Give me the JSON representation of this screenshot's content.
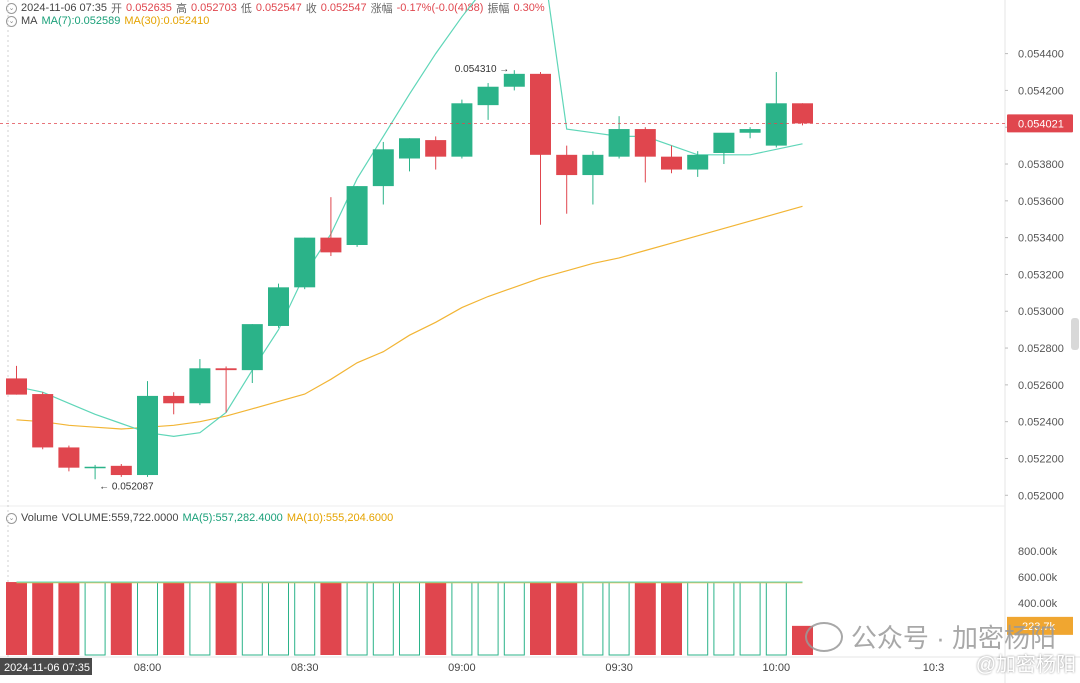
{
  "header": {
    "datetime": "2024-11-06 07:35",
    "open_label": "开",
    "open": "0.052635",
    "high_label": "高",
    "high": "0.052703",
    "low_label": "低",
    "low": "0.052547",
    "close_label": "收",
    "close": "0.052547",
    "change_label": "涨幅",
    "change": "-0.17%(-0.0(4)88)",
    "amplitude_label": "振幅",
    "amplitude": "0.30%"
  },
  "ma_legend": {
    "label": "MA",
    "ma7": "MA(7):0.052589",
    "ma30": "MA(30):0.052410"
  },
  "volume_legend": {
    "label": "Volume",
    "volume": "VOLUME:559,722.0000",
    "ma5": "MA(5):557,282.4000",
    "ma10": "MA(10):555,204.6000"
  },
  "watermark": {
    "text": "公众号 · 加密杨阳",
    "handle": "@加密杨阳"
  },
  "colors": {
    "up": "#2bb389",
    "down": "#e0464e",
    "ma7": "#5fd6b8",
    "ma30": "#f2b535",
    "price_tag": "#e0464e",
    "vol_tag": "#f0a630"
  },
  "chart_data": {
    "type": "candlestick",
    "interval_minutes": 5,
    "x_tick_labels": [
      "08:00",
      "08:30",
      "09:00",
      "09:30",
      "10:00",
      "10:3"
    ],
    "y_tick_labels": [
      "0.054400",
      "0.054200",
      "0.054000",
      "0.053800",
      "0.053600",
      "0.053400",
      "0.053200",
      "0.053000",
      "0.052800",
      "0.052600",
      "0.052400",
      "0.052200",
      "0.052000"
    ],
    "y_range": [
      0.05192,
      0.05455
    ],
    "last_price": "0.054021",
    "last_price_value": 0.054021,
    "high_marker": "0.054310",
    "low_marker": "0.052087",
    "cursor_time": "2024-11-06 07:35",
    "candles": [
      {
        "o": 0.052635,
        "h": 0.052703,
        "l": 0.052547,
        "c": 0.052547
      },
      {
        "o": 0.05255,
        "h": 0.05256,
        "l": 0.05225,
        "c": 0.05226
      },
      {
        "o": 0.05226,
        "h": 0.05227,
        "l": 0.05213,
        "c": 0.05215
      },
      {
        "o": 0.05215,
        "h": 0.052165,
        "l": 0.052087,
        "c": 0.052155
      },
      {
        "o": 0.05216,
        "h": 0.05217,
        "l": 0.0521,
        "c": 0.05211
      },
      {
        "o": 0.05211,
        "h": 0.05262,
        "l": 0.0521,
        "c": 0.05254
      },
      {
        "o": 0.05254,
        "h": 0.05256,
        "l": 0.05244,
        "c": 0.0525
      },
      {
        "o": 0.0525,
        "h": 0.05274,
        "l": 0.05249,
        "c": 0.05269
      },
      {
        "o": 0.05269,
        "h": 0.0527,
        "l": 0.05245,
        "c": 0.05268
      },
      {
        "o": 0.05268,
        "h": 0.05293,
        "l": 0.05261,
        "c": 0.05293
      },
      {
        "o": 0.05292,
        "h": 0.05315,
        "l": 0.05291,
        "c": 0.05313
      },
      {
        "o": 0.05313,
        "h": 0.0534,
        "l": 0.05312,
        "c": 0.0534
      },
      {
        "o": 0.0534,
        "h": 0.05362,
        "l": 0.0533,
        "c": 0.05332
      },
      {
        "o": 0.05336,
        "h": 0.05368,
        "l": 0.05335,
        "c": 0.05368
      },
      {
        "o": 0.05368,
        "h": 0.05392,
        "l": 0.05358,
        "c": 0.05388
      },
      {
        "o": 0.05383,
        "h": 0.05394,
        "l": 0.05376,
        "c": 0.05394
      },
      {
        "o": 0.05393,
        "h": 0.05395,
        "l": 0.05377,
        "c": 0.05384
      },
      {
        "o": 0.05384,
        "h": 0.05415,
        "l": 0.05383,
        "c": 0.05413
      },
      {
        "o": 0.05412,
        "h": 0.05424,
        "l": 0.05404,
        "c": 0.05422
      },
      {
        "o": 0.05422,
        "h": 0.05431,
        "l": 0.0542,
        "c": 0.05429
      },
      {
        "o": 0.05429,
        "h": 0.0543,
        "l": 0.05347,
        "c": 0.05385
      },
      {
        "o": 0.05385,
        "h": 0.0539,
        "l": 0.05353,
        "c": 0.05374
      },
      {
        "o": 0.05374,
        "h": 0.05387,
        "l": 0.05358,
        "c": 0.05385
      },
      {
        "o": 0.05384,
        "h": 0.05406,
        "l": 0.05383,
        "c": 0.05399
      },
      {
        "o": 0.05399,
        "h": 0.054,
        "l": 0.0537,
        "c": 0.05384
      },
      {
        "o": 0.05384,
        "h": 0.0539,
        "l": 0.05375,
        "c": 0.05377
      },
      {
        "o": 0.05377,
        "h": 0.05387,
        "l": 0.05373,
        "c": 0.05385
      },
      {
        "o": 0.05386,
        "h": 0.05396,
        "l": 0.0538,
        "c": 0.05397
      },
      {
        "o": 0.05397,
        "h": 0.054,
        "l": 0.05394,
        "c": 0.05399
      },
      {
        "o": 0.0539,
        "h": 0.0543,
        "l": 0.05389,
        "c": 0.05413
      },
      {
        "o": 0.05413,
        "h": 0.05413,
        "l": 0.05401,
        "c": 0.054021
      }
    ],
    "ma7": [
      0.05259,
      0.05256,
      0.0525,
      0.05244,
      0.05239,
      0.05234,
      0.05232,
      0.05234,
      0.05245,
      0.05268,
      0.0529,
      0.0532,
      0.05342,
      0.05372,
      0.05395,
      0.05418,
      0.0544,
      0.0546,
      0.05478,
      0.05494,
      0.055,
      0.05399,
      0.05397,
      0.05395,
      0.05395,
      0.0539,
      0.05385,
      0.05385,
      0.05385,
      0.05388,
      0.05391
    ],
    "ma30": [
      0.05241,
      0.0524,
      0.05238,
      0.05237,
      0.05236,
      0.05237,
      0.05238,
      0.0524,
      0.05243,
      0.05247,
      0.05251,
      0.05255,
      0.05263,
      0.05272,
      0.05278,
      0.05287,
      0.05294,
      0.05302,
      0.05308,
      0.05313,
      0.05318,
      0.05322,
      0.05326,
      0.05329,
      0.05333,
      0.05337,
      0.05341,
      0.05345,
      0.05349,
      0.05353,
      0.05357
    ],
    "volume": {
      "y_tick_labels": [
        "800.00k",
        "600.00k",
        "400.00k"
      ],
      "y_range": [
        0,
        975000
      ],
      "last_value_label": "223.7k",
      "values": [
        560000,
        560000,
        560000,
        560000,
        560000,
        560000,
        560000,
        560000,
        560000,
        560000,
        560000,
        560000,
        560000,
        560000,
        560000,
        560000,
        560000,
        560000,
        560000,
        560000,
        560000,
        560000,
        560000,
        560000,
        560000,
        560000,
        560000,
        560000,
        560000,
        560000,
        223700
      ],
      "ma5": [
        560000,
        560000,
        560000,
        560000,
        560000,
        560000,
        560000,
        560000,
        560000,
        560000,
        560000,
        560000,
        560000,
        560000,
        560000,
        560000,
        560000,
        560000,
        560000,
        560000,
        560000,
        560000,
        560000,
        560000,
        560000,
        560000,
        560000,
        560000,
        560000,
        560000,
        560000
      ],
      "ma10": [
        555000,
        555000,
        555000,
        555000,
        555000,
        555000,
        555000,
        555000,
        555000,
        555000,
        555000,
        555000,
        555000,
        555000,
        555000,
        555000,
        555000,
        555000,
        555000,
        555000,
        555000,
        555000,
        555000,
        555000,
        555000,
        555000,
        555000,
        555000,
        555000,
        555000,
        555000
      ]
    }
  }
}
